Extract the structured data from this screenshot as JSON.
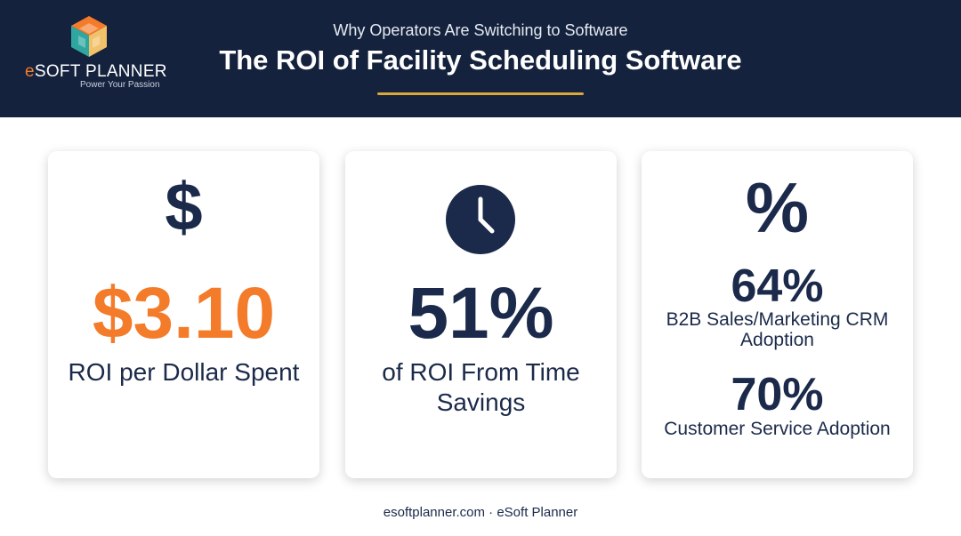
{
  "header": {
    "subtitle": "Why Operators Are Switching to Software",
    "title": "The ROI of Facility Scheduling Software"
  },
  "logo": {
    "brand_e": "e",
    "brand_rest": "SOFT PLANNER",
    "tagline": "Power Your Passion"
  },
  "cards": [
    {
      "icon": "dollar-icon",
      "value": "$3.10",
      "label": "ROI per Dollar Spent"
    },
    {
      "icon": "clock-icon",
      "value": "51%",
      "label": "of ROI From Time Savings"
    },
    {
      "icon": "percent-icon",
      "stats": [
        {
          "value": "64%",
          "label": "B2B Sales/Marketing CRM Adoption"
        },
        {
          "value": "70%",
          "label": "Customer Service Adoption"
        }
      ]
    }
  ],
  "footer": "esoftplanner.com · eSoft Planner",
  "colors": {
    "header_bg": "#14223d",
    "navy": "#1b2a4a",
    "orange": "#f47b2a",
    "gold": "#d9a93a",
    "teal": "#2fa7a0"
  }
}
